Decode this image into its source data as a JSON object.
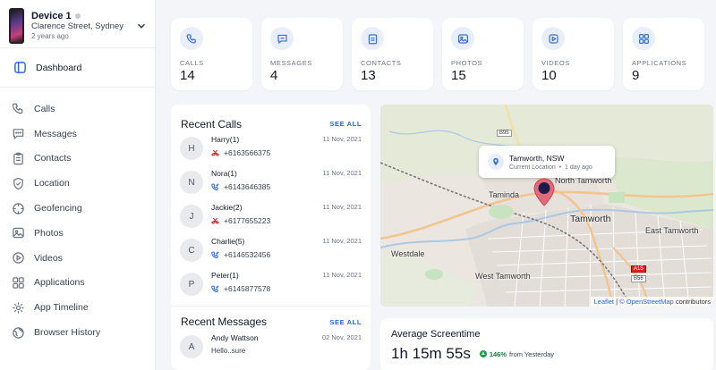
{
  "device": {
    "name": "Device 1",
    "location": "Clarence Street, Sydney",
    "time": "2 years ago"
  },
  "sidebar": {
    "active": {
      "label": "Dashboard",
      "icon": "dashboard-icon"
    },
    "items": [
      {
        "label": "Calls",
        "icon": "phone-icon"
      },
      {
        "label": "Messages",
        "icon": "message-icon"
      },
      {
        "label": "Contacts",
        "icon": "contacts-icon"
      },
      {
        "label": "Location",
        "icon": "location-icon"
      },
      {
        "label": "Geofencing",
        "icon": "geofence-icon"
      },
      {
        "label": "Photos",
        "icon": "photo-icon"
      },
      {
        "label": "Videos",
        "icon": "video-icon"
      },
      {
        "label": "Applications",
        "icon": "apps-icon"
      },
      {
        "label": "App Timeline",
        "icon": "timeline-icon"
      },
      {
        "label": "Browser History",
        "icon": "globe-icon"
      }
    ]
  },
  "stats": [
    {
      "label": "CALLS",
      "value": "14",
      "icon": "phone-icon"
    },
    {
      "label": "MESSAGES",
      "value": "4",
      "icon": "message-icon"
    },
    {
      "label": "CONTACTS",
      "value": "13",
      "icon": "contacts-icon"
    },
    {
      "label": "PHOTOS",
      "value": "15",
      "icon": "photo-icon"
    },
    {
      "label": "VIDEOS",
      "value": "10",
      "icon": "video-icon"
    },
    {
      "label": "APPLICATIONS",
      "value": "9",
      "icon": "apps-icon"
    }
  ],
  "recent_calls": {
    "title": "Recent Calls",
    "see_all": "SEE ALL",
    "items": [
      {
        "initial": "H",
        "name": "Harry(1)",
        "date": "11 Nov, 2021",
        "number": "+6163566375",
        "type": "missed"
      },
      {
        "initial": "N",
        "name": "Nora(1)",
        "date": "11 Nov, 2021",
        "number": "+6143646385",
        "type": "incoming"
      },
      {
        "initial": "J",
        "name": "Jackie(2)",
        "date": "11 Nov, 2021",
        "number": "+6177655223",
        "type": "missed"
      },
      {
        "initial": "C",
        "name": "Charlie(5)",
        "date": "11 Nov, 2021",
        "number": "+6146532456",
        "type": "incoming"
      },
      {
        "initial": "P",
        "name": "Peter(1)",
        "date": "11 Nov, 2021",
        "number": "+6145877578",
        "type": "incoming"
      }
    ]
  },
  "recent_messages": {
    "title": "Recent Messages",
    "see_all": "SEE ALL",
    "items": [
      {
        "initial": "A",
        "name": "Andy Wattson",
        "date": "02 Nov, 2021",
        "text": "Hello..sure"
      }
    ]
  },
  "map": {
    "popup_title": "Tamworth, NSW",
    "popup_sub": "Current Location",
    "popup_time": "1 day ago",
    "labels": {
      "north_tamworth": "North Tamworth",
      "taminda": "Taminda",
      "tamworth": "Tamworth",
      "east_tamworth": "East Tamworth",
      "westdale": "Westdale",
      "west_tamworth": "West Tamworth"
    },
    "roads": {
      "b95": "B95",
      "a15": "A15",
      "b56": "B56"
    },
    "attribution_leaflet": "Leaflet",
    "attribution_sep": "|",
    "attribution_osm": "© OpenStreetMap",
    "attribution_tail": "contributors"
  },
  "screentime": {
    "title": "Average Screentime",
    "value": "1h 15m 55s",
    "pct": "146%",
    "suffix": "from Yesterday"
  },
  "colors": {
    "accent": "#2563eb",
    "missed": "#dc2626",
    "incoming": "#2563eb",
    "positive": "#16a34a"
  }
}
